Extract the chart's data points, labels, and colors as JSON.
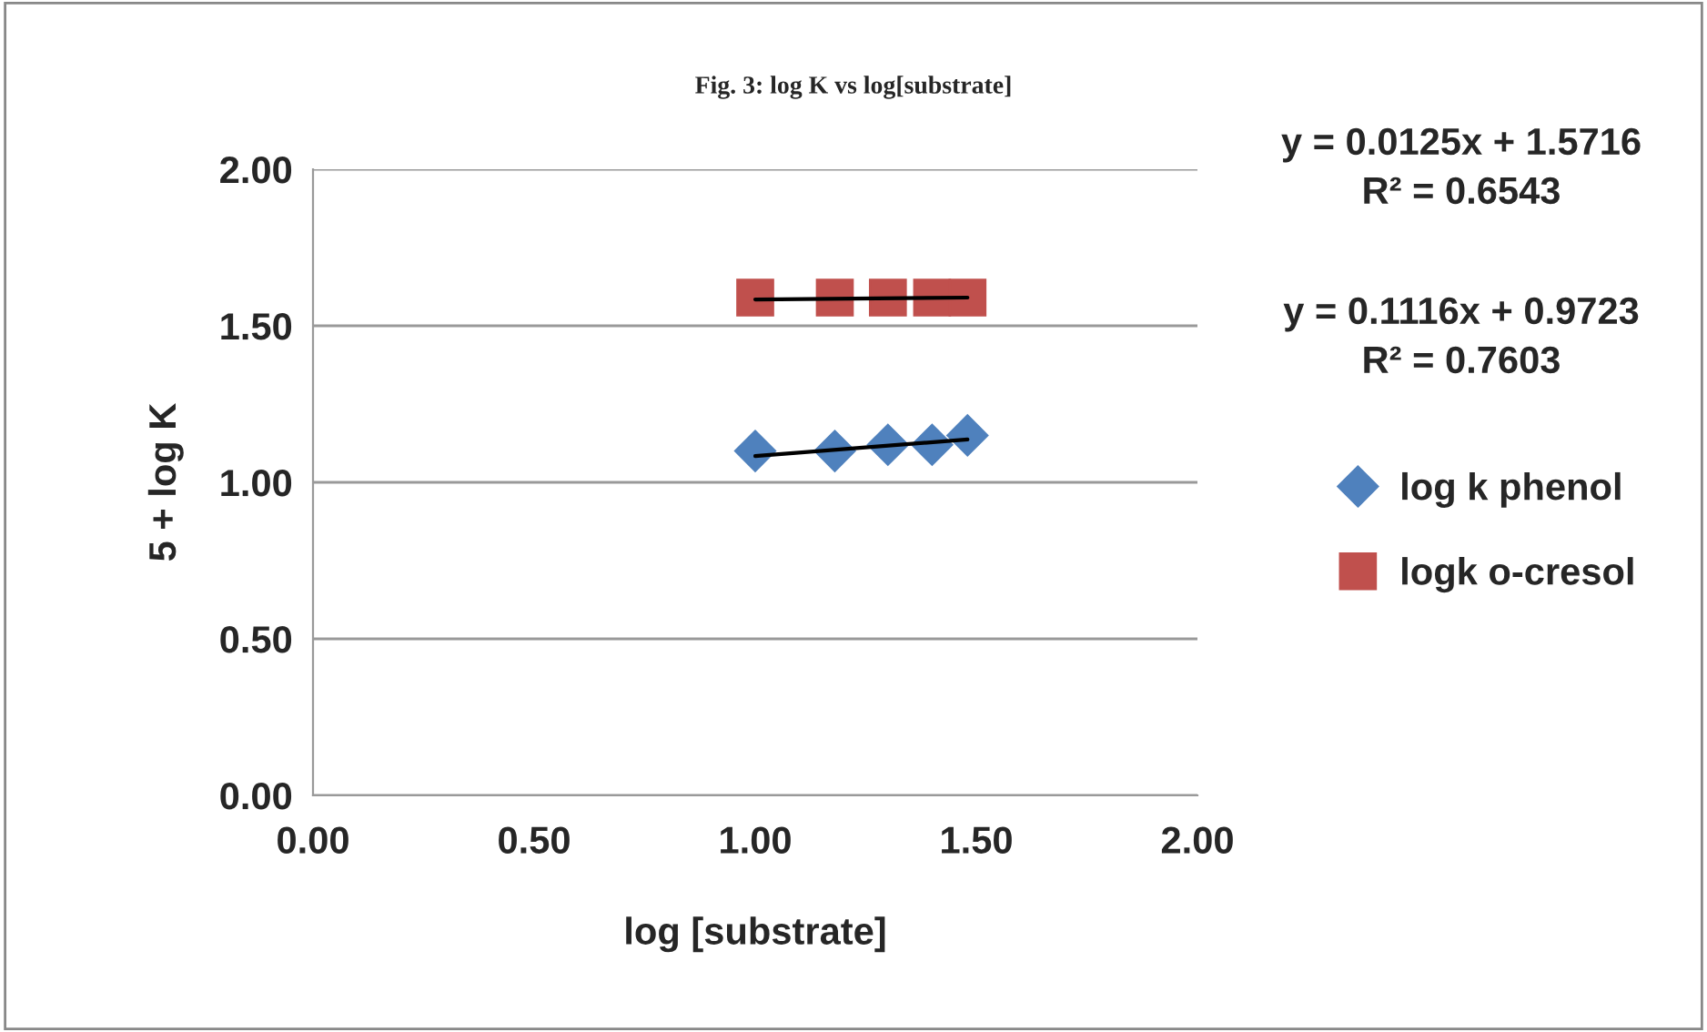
{
  "chart_data": {
    "type": "scatter",
    "title": "Fig. 3: log K vs log[substrate]",
    "xlabel": "log [substrate]",
    "ylabel": "5 + log K",
    "xlim": [
      0,
      2
    ],
    "xticks": [
      {
        "value": 0,
        "label": "0.00"
      },
      {
        "value": 0.5,
        "label": "0.50"
      },
      {
        "value": 1,
        "label": "1.00"
      },
      {
        "value": 1.5,
        "label": "1.50"
      },
      {
        "value": 2,
        "label": "2.00"
      }
    ],
    "ylim": [
      0,
      2
    ],
    "yticks": [
      {
        "value": 0,
        "label": "0.00"
      },
      {
        "value": 0.5,
        "label": "0.50"
      },
      {
        "value": 1,
        "label": "1.00"
      },
      {
        "value": 1.5,
        "label": "1.50"
      },
      {
        "value": 2,
        "label": "2.00"
      }
    ],
    "grid": "y",
    "legend": "right",
    "series": [
      {
        "name": "log k phenol",
        "color": "#4f81bd",
        "marker": "diamond",
        "x": [
          1.0,
          1.18,
          1.3,
          1.4,
          1.48
        ],
        "values": [
          1.1,
          1.1,
          1.12,
          1.12,
          1.15
        ]
      },
      {
        "name": "logk o-cresol",
        "color": "#c0504d",
        "marker": "square",
        "x": [
          1.0,
          1.18,
          1.3,
          1.4,
          1.48
        ],
        "values": [
          1.59,
          1.59,
          1.59,
          1.59,
          1.59
        ]
      },
      {
        "type": "line",
        "color": "#000000",
        "x": [
          1.0,
          1.48
        ],
        "values": [
          1.084,
          1.137
        ]
      },
      {
        "type": "line",
        "color": "#000000",
        "x": [
          1.0,
          1.48
        ],
        "values": [
          1.584,
          1.59
        ]
      }
    ],
    "annotations": [
      "y = 0.0125x + 1.5716\nR² = 0.6543",
      "y = 0.1116x + 0.9723\nR² = 0.7603"
    ]
  }
}
